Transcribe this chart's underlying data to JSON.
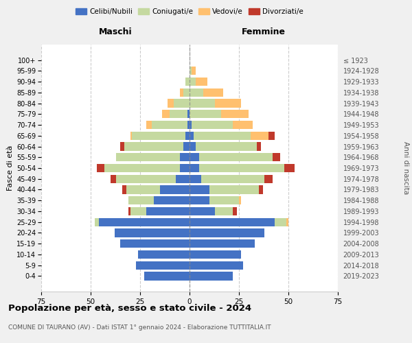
{
  "age_groups": [
    "0-4",
    "5-9",
    "10-14",
    "15-19",
    "20-24",
    "25-29",
    "30-34",
    "35-39",
    "40-44",
    "45-49",
    "50-54",
    "55-59",
    "60-64",
    "65-69",
    "70-74",
    "75-79",
    "80-84",
    "85-89",
    "90-94",
    "95-99",
    "100+"
  ],
  "birth_years": [
    "2019-2023",
    "2014-2018",
    "2009-2013",
    "2004-2008",
    "1999-2003",
    "1994-1998",
    "1989-1993",
    "1984-1988",
    "1979-1983",
    "1974-1978",
    "1969-1973",
    "1964-1968",
    "1959-1963",
    "1954-1958",
    "1949-1953",
    "1944-1948",
    "1939-1943",
    "1934-1938",
    "1929-1933",
    "1924-1928",
    "≤ 1923"
  ],
  "maschi": {
    "celibi": [
      23,
      27,
      26,
      35,
      38,
      46,
      22,
      18,
      15,
      7,
      5,
      5,
      3,
      2,
      1,
      1,
      0,
      0,
      0,
      0,
      0
    ],
    "coniugati": [
      0,
      0,
      0,
      0,
      0,
      2,
      8,
      13,
      17,
      30,
      38,
      32,
      30,
      27,
      18,
      9,
      8,
      3,
      2,
      0,
      0
    ],
    "vedovi": [
      0,
      0,
      0,
      0,
      0,
      0,
      0,
      0,
      0,
      0,
      0,
      0,
      0,
      1,
      3,
      4,
      3,
      2,
      0,
      0,
      0
    ],
    "divorziati": [
      0,
      0,
      0,
      0,
      0,
      0,
      1,
      0,
      2,
      3,
      4,
      0,
      2,
      0,
      0,
      0,
      0,
      0,
      0,
      0,
      0
    ]
  },
  "femmine": {
    "nubili": [
      22,
      27,
      26,
      33,
      38,
      43,
      13,
      10,
      10,
      6,
      5,
      5,
      3,
      2,
      1,
      0,
      0,
      0,
      0,
      0,
      0
    ],
    "coniugate": [
      0,
      0,
      0,
      0,
      0,
      6,
      9,
      15,
      25,
      32,
      43,
      37,
      31,
      29,
      21,
      16,
      13,
      7,
      3,
      1,
      0
    ],
    "vedove": [
      0,
      0,
      0,
      0,
      0,
      1,
      0,
      1,
      0,
      0,
      0,
      0,
      0,
      9,
      10,
      14,
      13,
      10,
      6,
      2,
      0
    ],
    "divorziate": [
      0,
      0,
      0,
      0,
      0,
      0,
      2,
      0,
      2,
      4,
      5,
      4,
      2,
      3,
      0,
      0,
      0,
      0,
      0,
      0,
      0
    ]
  },
  "colors": {
    "celibi": "#4472c4",
    "coniugati": "#c5d9a0",
    "vedovi": "#ffc06f",
    "divorziati": "#c0392b"
  },
  "xlim": 75,
  "title": "Popolazione per età, sesso e stato civile - 2024",
  "subtitle": "COMUNE DI TAURANO (AV) - Dati ISTAT 1° gennaio 2024 - Elaborazione TUTTITALIA.IT",
  "ylabel": "Fasce di età",
  "ylabel_right": "Anni di nascita",
  "xlabel_maschi": "Maschi",
  "xlabel_femmine": "Femmine",
  "bg_color": "#f0f0f0",
  "plot_bg": "#ffffff"
}
